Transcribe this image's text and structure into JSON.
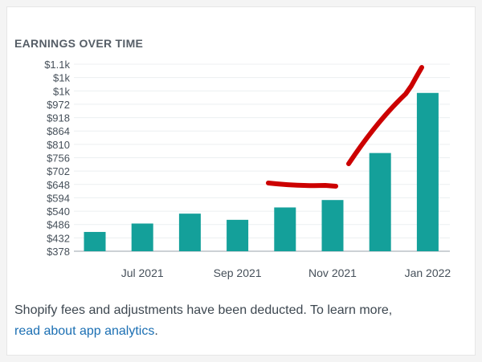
{
  "chart_data": {
    "type": "bar",
    "title": "EARNINGS OVER TIME",
    "yticks": [
      "$1.1k",
      "$1k",
      "$1k",
      "$972",
      "$918",
      "$864",
      "$810",
      "$756",
      "$702",
      "$648",
      "$594",
      "$540",
      "$486",
      "$432",
      "$378"
    ],
    "ytick_values": [
      1134,
      1080,
      1026,
      972,
      918,
      864,
      810,
      756,
      702,
      648,
      594,
      540,
      486,
      432,
      378
    ],
    "xticks": [
      {
        "label": "Jul 2021",
        "index": 1
      },
      {
        "label": "Sep 2021",
        "index": 3
      },
      {
        "label": "Nov 2021",
        "index": 5
      },
      {
        "label": "Jan 2022",
        "index": 7
      }
    ],
    "values": [
      456,
      490,
      530,
      505,
      555,
      585,
      775,
      1018
    ],
    "ylim": [
      378,
      1134
    ],
    "bar_color": "#14a09a",
    "annotation_color": "#cc0000"
  },
  "footer": {
    "text": "Shopify fees and adjustments have been deducted. To learn more,",
    "link": "read about app analytics",
    "link_suffix": "."
  }
}
